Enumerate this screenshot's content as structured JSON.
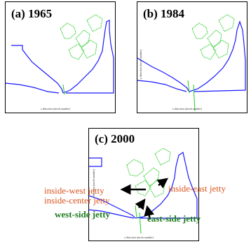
{
  "panels": [
    {
      "label": "(a) 1965",
      "xlabel": "x direction (mesh number)",
      "ylabel": ""
    },
    {
      "label": "(b) 1984",
      "xlabel": "x direction (mesh number)",
      "ylabel": "y direction (mesh number)"
    },
    {
      "label": "(c) 2000",
      "xlabel": "x direction (mesh number)",
      "ylabel": "y direction (mesh number)"
    }
  ],
  "annotations": {
    "inside_west": "inside-west jetty",
    "inside_center": "inside-center jetty",
    "inside_east": "inside-east jetty",
    "west_side": "west-side jetty",
    "east_side": "east-side jetty"
  },
  "colors": {
    "coast": "#1a1aff",
    "land": "#22cc22",
    "orange_text": "#d9541e",
    "green_text": "#1d7a1d",
    "arrow": "#000000"
  }
}
